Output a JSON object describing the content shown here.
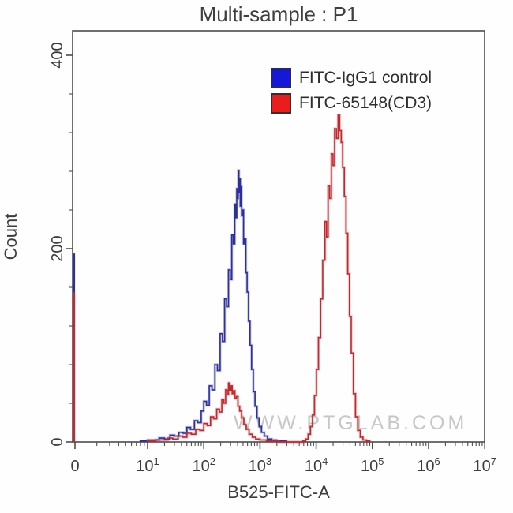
{
  "title": "Multi-sample : P1",
  "axes": {
    "x_label": "B525-FITC-A",
    "y_label": "Count"
  },
  "legend": [
    {
      "label": "FITC-IgG1 control",
      "color": "#1618d8"
    },
    {
      "label": "FITC-65148(CD3)",
      "color": "#ea1c1c"
    }
  ],
  "watermark": "WWW.PTGLAB.COM",
  "colors": {
    "axis": "#4d4d4d",
    "tick_text": "#3c3c3c",
    "blue_trace": "#2c2f9e",
    "red_trace": "#c4282d"
  },
  "chart_data": {
    "type": "line",
    "subtype": "flow-cytometry-histogram-overlay",
    "title": "Multi-sample : P1",
    "xlabel": "B525-FITC-A",
    "ylabel": "Count",
    "x_axis_scale": "biexponential (linear 0 region, log decades 10^1 to 10^7)",
    "ylim": [
      0,
      425
    ],
    "y_ticks": [
      {
        "value": 0,
        "label": "0"
      },
      {
        "value": 200,
        "label": "200"
      },
      {
        "value": 400,
        "label": "400"
      }
    ],
    "y_minor_step": 40,
    "x_ticks": [
      {
        "value": 0,
        "label": "0",
        "exp": ""
      },
      {
        "value": 10,
        "label": "10",
        "exp": "1"
      },
      {
        "value": 100,
        "label": "10",
        "exp": "2"
      },
      {
        "value": 1000,
        "label": "10",
        "exp": "3"
      },
      {
        "value": 10000,
        "label": "10",
        "exp": "4"
      },
      {
        "value": 100000,
        "label": "10",
        "exp": "5"
      },
      {
        "value": 1000000,
        "label": "10",
        "exp": "6"
      },
      {
        "value": 10000000,
        "label": "10",
        "exp": "7"
      }
    ],
    "series": [
      {
        "name": "FITC-IgG1 control",
        "color": "#2c2f9e",
        "peak": {
          "x": 410,
          "count": 281
        },
        "zero_spike_count": 195,
        "points": [
          [
            8,
            1
          ],
          [
            10,
            2
          ],
          [
            13,
            2
          ],
          [
            16,
            4
          ],
          [
            20,
            3
          ],
          [
            25,
            7
          ],
          [
            30,
            6
          ],
          [
            36,
            10
          ],
          [
            43,
            9
          ],
          [
            50,
            15
          ],
          [
            58,
            13
          ],
          [
            68,
            22
          ],
          [
            78,
            20
          ],
          [
            90,
            32
          ],
          [
            100,
            42
          ],
          [
            112,
            38
          ],
          [
            125,
            58
          ],
          [
            140,
            54
          ],
          [
            158,
            80
          ],
          [
            175,
            74
          ],
          [
            195,
            112
          ],
          [
            215,
            104
          ],
          [
            235,
            148
          ],
          [
            255,
            140
          ],
          [
            275,
            178
          ],
          [
            295,
            168
          ],
          [
            315,
            214
          ],
          [
            335,
            205
          ],
          [
            355,
            246
          ],
          [
            372,
            232
          ],
          [
            386,
            262
          ],
          [
            398,
            252
          ],
          [
            410,
            281
          ],
          [
            422,
            258
          ],
          [
            434,
            272
          ],
          [
            446,
            244
          ],
          [
            458,
            264
          ],
          [
            472,
            234
          ],
          [
            490,
            240
          ],
          [
            510,
            205
          ],
          [
            535,
            210
          ],
          [
            560,
            175
          ],
          [
            590,
            155
          ],
          [
            625,
            125
          ],
          [
            665,
            100
          ],
          [
            710,
            75
          ],
          [
            760,
            52
          ],
          [
            815,
            37
          ],
          [
            885,
            25
          ],
          [
            965,
            16
          ],
          [
            1065,
            10
          ],
          [
            1190,
            6
          ],
          [
            1360,
            3
          ],
          [
            1620,
            2
          ],
          [
            1980,
            1
          ],
          [
            2450,
            1
          ],
          [
            2950,
            0
          ]
        ]
      },
      {
        "name": "FITC-65148(CD3)",
        "color": "#c4282d",
        "peak": {
          "x": 24600,
          "count": 338
        },
        "secondary_peak": {
          "x": 275,
          "count": 61
        },
        "zero_spike_count": 155,
        "points": [
          [
            10,
            1
          ],
          [
            14,
            2
          ],
          [
            18,
            2
          ],
          [
            23,
            4
          ],
          [
            28,
            3
          ],
          [
            35,
            6
          ],
          [
            42,
            5
          ],
          [
            50,
            9
          ],
          [
            60,
            8
          ],
          [
            72,
            13
          ],
          [
            85,
            12
          ],
          [
            100,
            19
          ],
          [
            115,
            17
          ],
          [
            132,
            26
          ],
          [
            150,
            24
          ],
          [
            170,
            34
          ],
          [
            190,
            31
          ],
          [
            210,
            44
          ],
          [
            228,
            40
          ],
          [
            245,
            54
          ],
          [
            260,
            49
          ],
          [
            275,
            61
          ],
          [
            290,
            53
          ],
          [
            305,
            58
          ],
          [
            320,
            50
          ],
          [
            338,
            53
          ],
          [
            358,
            45
          ],
          [
            380,
            47
          ],
          [
            405,
            37
          ],
          [
            435,
            32
          ],
          [
            470,
            25
          ],
          [
            515,
            18
          ],
          [
            570,
            13
          ],
          [
            640,
            8
          ],
          [
            730,
            5
          ],
          [
            840,
            3
          ],
          [
            1000,
            2
          ],
          [
            1300,
            1
          ],
          [
            1700,
            1
          ],
          [
            2200,
            0
          ],
          [
            3500,
            0
          ],
          [
            5000,
            0
          ],
          [
            5800,
            1
          ],
          [
            6500,
            3
          ],
          [
            7200,
            8
          ],
          [
            7900,
            16
          ],
          [
            8600,
            28
          ],
          [
            9300,
            48
          ],
          [
            10100,
            75
          ],
          [
            11000,
            108
          ],
          [
            12000,
            148
          ],
          [
            13100,
            188
          ],
          [
            14300,
            228
          ],
          [
            15300,
            212
          ],
          [
            16300,
            265
          ],
          [
            17400,
            252
          ],
          [
            18600,
            298
          ],
          [
            19900,
            286
          ],
          [
            21300,
            324
          ],
          [
            22900,
            314
          ],
          [
            24600,
            338
          ],
          [
            26100,
            322
          ],
          [
            27900,
            310
          ],
          [
            29600,
            284
          ],
          [
            31600,
            254
          ],
          [
            33900,
            216
          ],
          [
            36400,
            174
          ],
          [
            39100,
            130
          ],
          [
            42100,
            92
          ],
          [
            46000,
            50
          ],
          [
            50000,
            26
          ],
          [
            55000,
            12
          ],
          [
            61000,
            5
          ],
          [
            68000,
            2
          ],
          [
            78000,
            1
          ],
          [
            90000,
            0
          ]
        ]
      }
    ]
  }
}
